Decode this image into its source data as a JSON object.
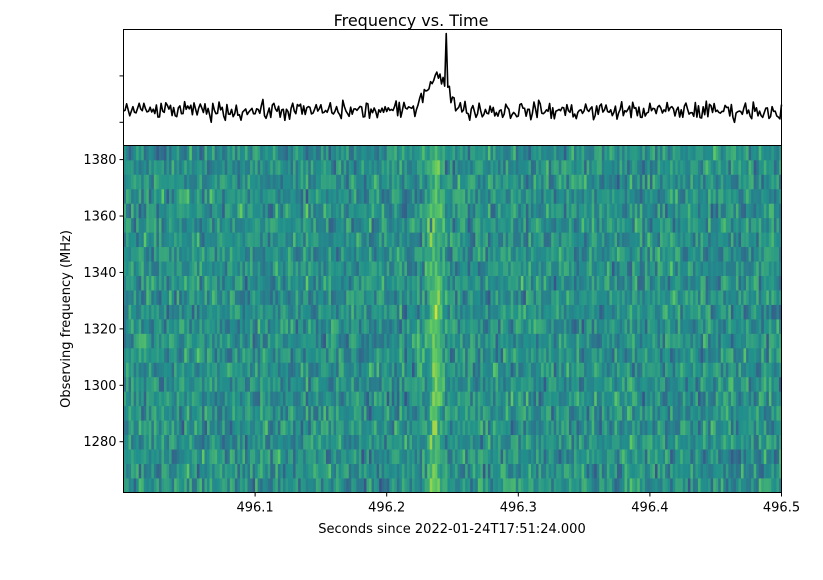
{
  "chart_data": [
    {
      "panel": "profile",
      "type": "line",
      "title": "Frequency vs. Time",
      "xlim": [
        496.0,
        496.5
      ],
      "ylim": [
        -1.0,
        1.0
      ],
      "yticks": [
        -0.6,
        0.2
      ],
      "yticklabels": [
        "",
        ""
      ],
      "line_color": "#000000",
      "series": [
        {
          "x_start": 496.0,
          "x_end": 496.5,
          "pulse_peak_x": 496.245,
          "pulse_peak_y": 0.93,
          "noise_baseline_y": -0.4
        }
      ]
    },
    {
      "panel": "dynamic_spectrum",
      "type": "heatmap",
      "xlabel": "Seconds since 2022-01-24T17:51:24.000",
      "ylabel": "Observing frequency (MHz)",
      "xlim": [
        496.0,
        496.5
      ],
      "ylim": [
        1262,
        1385
      ],
      "xticks": [
        496.1,
        496.2,
        496.3,
        496.4,
        496.5
      ],
      "xticklabels": [
        "496.1",
        "496.2",
        "496.3",
        "496.4",
        "496.5"
      ],
      "yticks": [
        1280,
        1300,
        1320,
        1340,
        1360,
        1380
      ],
      "yticklabels": [
        "1280",
        "1300",
        "1320",
        "1340",
        "1360",
        "1380"
      ],
      "colormap": "viridis",
      "n_channels": 24,
      "n_time_bins": 260,
      "pulse_time": 496.237,
      "colors": {
        "cmap_stops": [
          "#440154",
          "#3b528b",
          "#21918c",
          "#5ec962",
          "#fde725"
        ]
      }
    }
  ]
}
